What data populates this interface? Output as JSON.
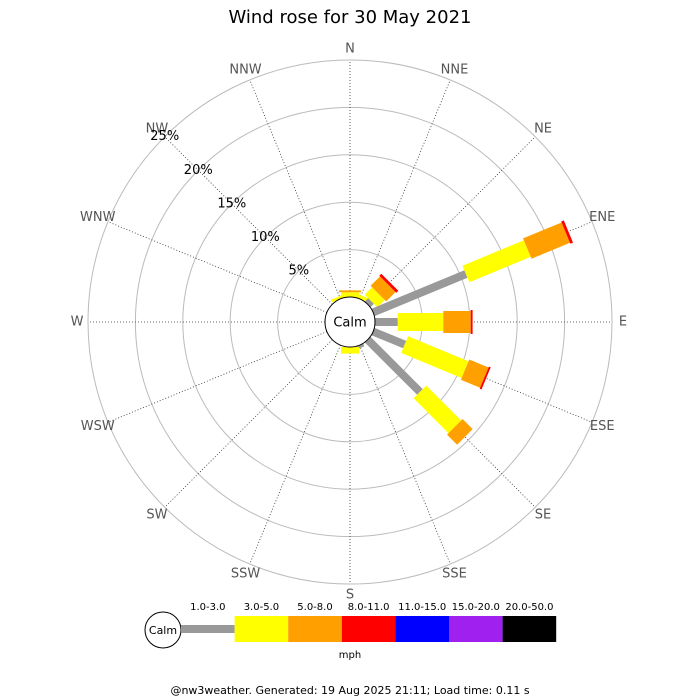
{
  "chart_data": {
    "type": "windrose",
    "title": "Wind rose for 30 May 2021",
    "calm_label": "Calm",
    "unit": "mph",
    "footer": "@nw3weather. Generated: 19 Aug 2025 21:11; Load time: 0.11 s",
    "directions": [
      "N",
      "NNE",
      "NE",
      "ENE",
      "E",
      "ESE",
      "SE",
      "SSE",
      "S",
      "SSW",
      "SW",
      "WSW",
      "W",
      "WNW",
      "NW",
      "NNW"
    ],
    "rlim": [
      0,
      25
    ],
    "rticks": [
      {
        "value": 5,
        "label": "5%"
      },
      {
        "value": 10,
        "label": "10%"
      },
      {
        "value": 15,
        "label": "15%"
      },
      {
        "value": 20,
        "label": "20%"
      },
      {
        "value": 25,
        "label": "25%"
      }
    ],
    "series": [
      {
        "name": "1.0-3.0",
        "color": "#999999",
        "values": [
          0,
          0,
          0.5,
          10.6,
          2.4,
          3.6,
          7.8,
          0.3,
          0,
          0,
          0,
          0,
          0,
          0,
          0,
          0
        ]
      },
      {
        "name": "3.0-5.0",
        "color": "#ffff00",
        "values": [
          0.5,
          0.4,
          1.1,
          7.0,
          4.8,
          6.9,
          5.2,
          0,
          0.7,
          0,
          0,
          0,
          0,
          0,
          0,
          0.3
        ]
      },
      {
        "name": "5.0-8.0",
        "color": "#ffa000",
        "values": [
          0.2,
          0,
          1.4,
          4.4,
          2.9,
          2.2,
          1.5,
          0,
          0,
          0,
          0,
          0,
          0,
          0,
          0,
          0
        ]
      },
      {
        "name": "8.0-11.0",
        "color": "#ff0000",
        "values": [
          0,
          0,
          0.3,
          0.3,
          0.2,
          0.2,
          0,
          0,
          0,
          0,
          0,
          0,
          0,
          0,
          0,
          0
        ]
      },
      {
        "name": "11.0-15.0",
        "color": "#0000ff",
        "values": [
          0,
          0,
          0,
          0,
          0,
          0,
          0,
          0,
          0,
          0,
          0,
          0,
          0,
          0,
          0,
          0
        ]
      },
      {
        "name": "15.0-20.0",
        "color": "#a020f0",
        "values": [
          0,
          0,
          0,
          0,
          0,
          0,
          0,
          0,
          0,
          0,
          0,
          0,
          0,
          0,
          0,
          0
        ]
      },
      {
        "name": "20.0-50.0",
        "color": "#000000",
        "values": [
          0,
          0,
          0,
          0,
          0,
          0,
          0,
          0,
          0,
          0,
          0,
          0,
          0,
          0,
          0,
          0
        ]
      }
    ]
  }
}
